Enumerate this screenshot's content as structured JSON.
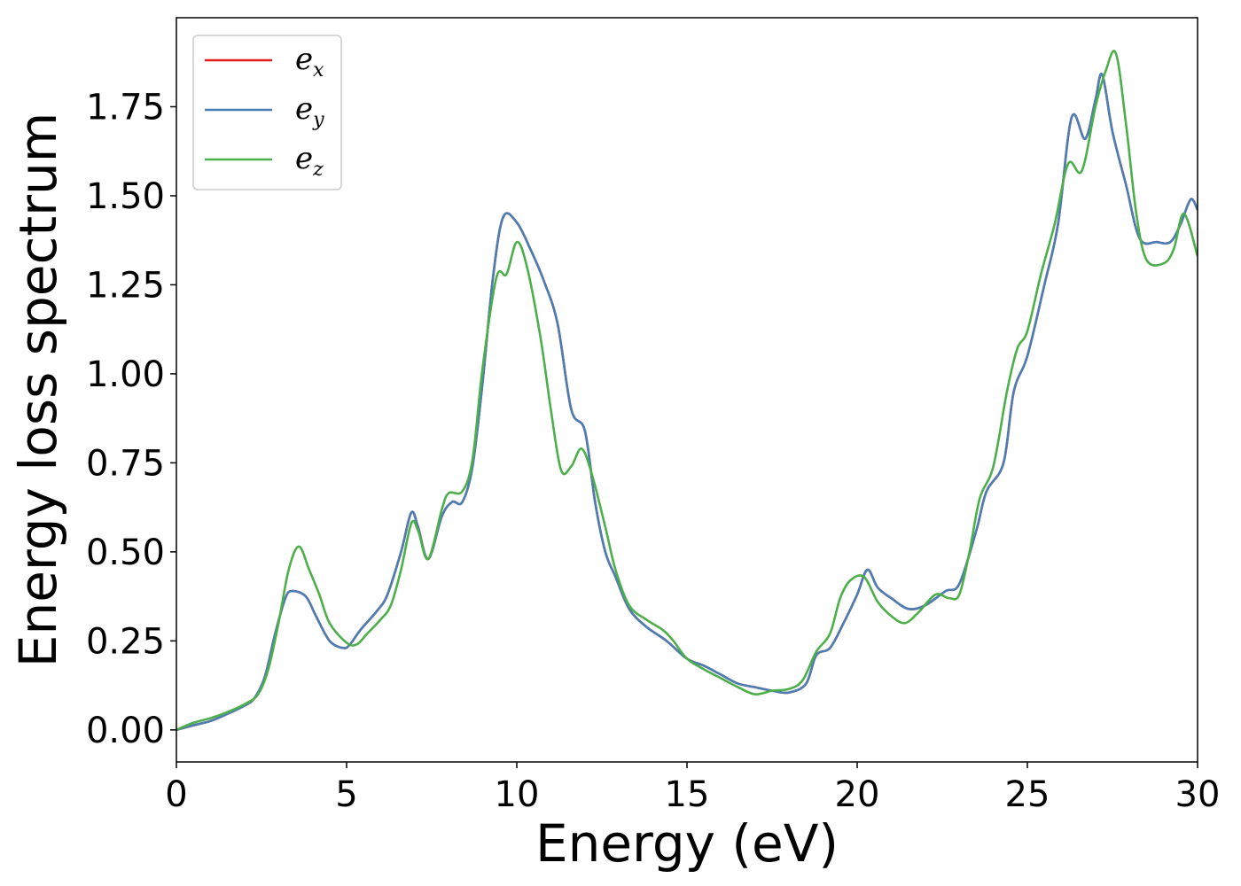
{
  "chart_data": {
    "type": "line",
    "xlabel": "Energy (eV)",
    "ylabel": "Energy loss spectrum",
    "xlim": [
      0,
      30
    ],
    "ylim": [
      -0.09,
      2.0
    ],
    "xticks": [
      0,
      5,
      10,
      15,
      20,
      25,
      30
    ],
    "xtick_labels": [
      "0",
      "5",
      "10",
      "15",
      "20",
      "25",
      "30"
    ],
    "yticks": [
      0.0,
      0.25,
      0.5,
      0.75,
      1.0,
      1.25,
      1.5,
      1.75
    ],
    "ytick_labels": [
      "0.00",
      "0.25",
      "0.50",
      "0.75",
      "1.00",
      "1.25",
      "1.50",
      "1.75"
    ],
    "grid": false,
    "legend_position": "top-left",
    "series": [
      {
        "name": "e_x",
        "label_base": "e",
        "label_sub": "x",
        "color": "#e41a1c",
        "points": [
          [
            0,
            0
          ],
          [
            0.5,
            0.013
          ],
          [
            1,
            0.025
          ],
          [
            1.5,
            0.045
          ],
          [
            2,
            0.068
          ],
          [
            2.3,
            0.09
          ],
          [
            2.6,
            0.15
          ],
          [
            2.9,
            0.27
          ],
          [
            3.2,
            0.37
          ],
          [
            3.4,
            0.39
          ],
          [
            3.8,
            0.375
          ],
          [
            4.1,
            0.32
          ],
          [
            4.5,
            0.25
          ],
          [
            4.9,
            0.23
          ],
          [
            5.1,
            0.24
          ],
          [
            5.4,
            0.28
          ],
          [
            5.9,
            0.335
          ],
          [
            6.2,
            0.38
          ],
          [
            6.6,
            0.5
          ],
          [
            6.9,
            0.61
          ],
          [
            7.1,
            0.57
          ],
          [
            7.4,
            0.48
          ],
          [
            7.8,
            0.6
          ],
          [
            8.1,
            0.64
          ],
          [
            8.4,
            0.64
          ],
          [
            8.7,
            0.74
          ],
          [
            9,
            0.98
          ],
          [
            9.3,
            1.27
          ],
          [
            9.6,
            1.44
          ],
          [
            10,
            1.425
          ],
          [
            10.4,
            1.35
          ],
          [
            10.8,
            1.26
          ],
          [
            11.2,
            1.14
          ],
          [
            11.6,
            0.9
          ],
          [
            12,
            0.84
          ],
          [
            12.3,
            0.64
          ],
          [
            12.6,
            0.5
          ],
          [
            12.9,
            0.43
          ],
          [
            13.3,
            0.34
          ],
          [
            13.8,
            0.29
          ],
          [
            14.4,
            0.25
          ],
          [
            15,
            0.2
          ],
          [
            15.5,
            0.18
          ],
          [
            16,
            0.155
          ],
          [
            16.5,
            0.13
          ],
          [
            17,
            0.12
          ],
          [
            17.5,
            0.11
          ],
          [
            18,
            0.105
          ],
          [
            18.5,
            0.13
          ],
          [
            18.8,
            0.21
          ],
          [
            19.2,
            0.23
          ],
          [
            19.6,
            0.3
          ],
          [
            20,
            0.38
          ],
          [
            20.3,
            0.45
          ],
          [
            20.6,
            0.4
          ],
          [
            21,
            0.37
          ],
          [
            21.5,
            0.34
          ],
          [
            22,
            0.35
          ],
          [
            22.6,
            0.39
          ],
          [
            23,
            0.41
          ],
          [
            23.5,
            0.56
          ],
          [
            23.8,
            0.67
          ],
          [
            24.3,
            0.75
          ],
          [
            24.6,
            0.95
          ],
          [
            25,
            1.05
          ],
          [
            25.5,
            1.25
          ],
          [
            25.9,
            1.42
          ],
          [
            26.3,
            1.72
          ],
          [
            26.7,
            1.66
          ],
          [
            27,
            1.77
          ],
          [
            27.2,
            1.84
          ],
          [
            27.5,
            1.68
          ],
          [
            27.9,
            1.53
          ],
          [
            28.3,
            1.38
          ],
          [
            28.8,
            1.37
          ],
          [
            29.2,
            1.37
          ],
          [
            29.5,
            1.42
          ],
          [
            29.8,
            1.49
          ],
          [
            30,
            1.46
          ]
        ]
      },
      {
        "name": "e_y",
        "label_base": "e",
        "label_sub": "y",
        "color": "#4a7fb5",
        "points": [
          [
            0,
            0
          ],
          [
            0.5,
            0.013
          ],
          [
            1,
            0.025
          ],
          [
            1.5,
            0.045
          ],
          [
            2,
            0.068
          ],
          [
            2.3,
            0.09
          ],
          [
            2.6,
            0.15
          ],
          [
            2.9,
            0.27
          ],
          [
            3.2,
            0.37
          ],
          [
            3.4,
            0.39
          ],
          [
            3.8,
            0.375
          ],
          [
            4.1,
            0.32
          ],
          [
            4.5,
            0.25
          ],
          [
            4.9,
            0.23
          ],
          [
            5.1,
            0.24
          ],
          [
            5.4,
            0.28
          ],
          [
            5.9,
            0.335
          ],
          [
            6.2,
            0.38
          ],
          [
            6.6,
            0.5
          ],
          [
            6.9,
            0.61
          ],
          [
            7.1,
            0.57
          ],
          [
            7.4,
            0.48
          ],
          [
            7.8,
            0.6
          ],
          [
            8.1,
            0.64
          ],
          [
            8.4,
            0.64
          ],
          [
            8.7,
            0.74
          ],
          [
            9,
            0.98
          ],
          [
            9.3,
            1.27
          ],
          [
            9.6,
            1.44
          ],
          [
            10,
            1.425
          ],
          [
            10.4,
            1.35
          ],
          [
            10.8,
            1.26
          ],
          [
            11.2,
            1.14
          ],
          [
            11.6,
            0.9
          ],
          [
            12,
            0.84
          ],
          [
            12.3,
            0.64
          ],
          [
            12.6,
            0.5
          ],
          [
            12.9,
            0.43
          ],
          [
            13.3,
            0.34
          ],
          [
            13.8,
            0.29
          ],
          [
            14.4,
            0.25
          ],
          [
            15,
            0.2
          ],
          [
            15.5,
            0.18
          ],
          [
            16,
            0.155
          ],
          [
            16.5,
            0.13
          ],
          [
            17,
            0.12
          ],
          [
            17.5,
            0.11
          ],
          [
            18,
            0.105
          ],
          [
            18.5,
            0.13
          ],
          [
            18.8,
            0.21
          ],
          [
            19.2,
            0.23
          ],
          [
            19.6,
            0.3
          ],
          [
            20,
            0.38
          ],
          [
            20.3,
            0.45
          ],
          [
            20.6,
            0.4
          ],
          [
            21,
            0.37
          ],
          [
            21.5,
            0.34
          ],
          [
            22,
            0.35
          ],
          [
            22.6,
            0.39
          ],
          [
            23,
            0.41
          ],
          [
            23.5,
            0.56
          ],
          [
            23.8,
            0.67
          ],
          [
            24.3,
            0.75
          ],
          [
            24.6,
            0.95
          ],
          [
            25,
            1.05
          ],
          [
            25.5,
            1.25
          ],
          [
            25.9,
            1.42
          ],
          [
            26.3,
            1.72
          ],
          [
            26.7,
            1.66
          ],
          [
            27,
            1.77
          ],
          [
            27.2,
            1.84
          ],
          [
            27.5,
            1.68
          ],
          [
            27.9,
            1.53
          ],
          [
            28.3,
            1.38
          ],
          [
            28.8,
            1.37
          ],
          [
            29.2,
            1.37
          ],
          [
            29.5,
            1.42
          ],
          [
            29.8,
            1.49
          ],
          [
            30,
            1.46
          ]
        ]
      },
      {
        "name": "e_z",
        "label_base": "e",
        "label_sub": "z",
        "color": "#4daf4a",
        "points": [
          [
            0,
            0
          ],
          [
            0.5,
            0.02
          ],
          [
            1,
            0.033
          ],
          [
            1.5,
            0.05
          ],
          [
            2,
            0.072
          ],
          [
            2.4,
            0.1
          ],
          [
            2.7,
            0.17
          ],
          [
            3,
            0.3
          ],
          [
            3.3,
            0.45
          ],
          [
            3.6,
            0.515
          ],
          [
            3.9,
            0.45
          ],
          [
            4.2,
            0.38
          ],
          [
            4.5,
            0.3
          ],
          [
            5,
            0.245
          ],
          [
            5.3,
            0.24
          ],
          [
            5.6,
            0.27
          ],
          [
            6,
            0.31
          ],
          [
            6.3,
            0.35
          ],
          [
            6.6,
            0.45
          ],
          [
            6.9,
            0.58
          ],
          [
            7.1,
            0.56
          ],
          [
            7.4,
            0.48
          ],
          [
            7.8,
            0.62
          ],
          [
            8,
            0.665
          ],
          [
            8.4,
            0.67
          ],
          [
            8.7,
            0.76
          ],
          [
            9,
            1.02
          ],
          [
            9.4,
            1.27
          ],
          [
            9.7,
            1.28
          ],
          [
            10,
            1.37
          ],
          [
            10.3,
            1.3
          ],
          [
            10.7,
            1.1
          ],
          [
            11,
            0.9
          ],
          [
            11.3,
            0.73
          ],
          [
            11.6,
            0.74
          ],
          [
            11.9,
            0.79
          ],
          [
            12.2,
            0.72
          ],
          [
            12.6,
            0.57
          ],
          [
            12.9,
            0.45
          ],
          [
            13.3,
            0.35
          ],
          [
            13.8,
            0.31
          ],
          [
            14.3,
            0.28
          ],
          [
            14.6,
            0.25
          ],
          [
            15,
            0.2
          ],
          [
            15.5,
            0.17
          ],
          [
            16,
            0.145
          ],
          [
            16.5,
            0.12
          ],
          [
            17,
            0.1
          ],
          [
            17.5,
            0.11
          ],
          [
            18,
            0.115
          ],
          [
            18.4,
            0.14
          ],
          [
            18.8,
            0.22
          ],
          [
            19.2,
            0.27
          ],
          [
            19.5,
            0.37
          ],
          [
            19.8,
            0.42
          ],
          [
            20.2,
            0.43
          ],
          [
            20.6,
            0.36
          ],
          [
            21,
            0.32
          ],
          [
            21.4,
            0.3
          ],
          [
            21.8,
            0.33
          ],
          [
            22.3,
            0.38
          ],
          [
            22.7,
            0.37
          ],
          [
            23,
            0.38
          ],
          [
            23.3,
            0.5
          ],
          [
            23.6,
            0.65
          ],
          [
            24,
            0.74
          ],
          [
            24.4,
            0.95
          ],
          [
            24.7,
            1.07
          ],
          [
            25,
            1.12
          ],
          [
            25.4,
            1.28
          ],
          [
            25.8,
            1.42
          ],
          [
            26.2,
            1.59
          ],
          [
            26.6,
            1.57
          ],
          [
            27,
            1.75
          ],
          [
            27.3,
            1.85
          ],
          [
            27.6,
            1.9
          ],
          [
            27.9,
            1.7
          ],
          [
            28.2,
            1.45
          ],
          [
            28.5,
            1.32
          ],
          [
            29,
            1.31
          ],
          [
            29.3,
            1.35
          ],
          [
            29.6,
            1.45
          ],
          [
            30,
            1.33
          ]
        ]
      }
    ]
  }
}
